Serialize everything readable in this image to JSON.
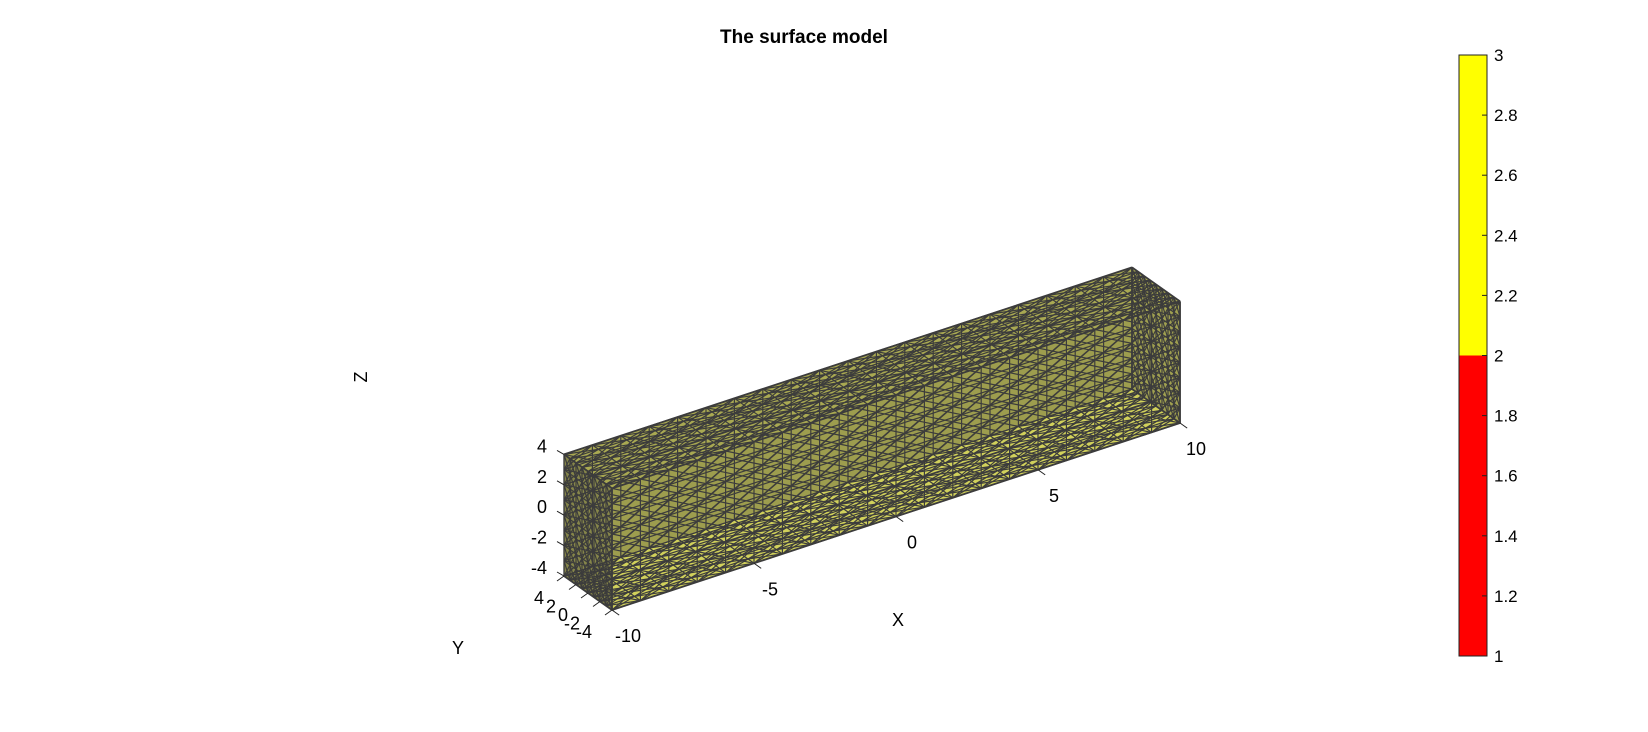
{
  "chart_data": {
    "type": "surface-mesh-3d",
    "title": "The surface model",
    "xlabel": "X",
    "ylabel": "Y",
    "zlabel": "Z",
    "xlim": [
      -10,
      10
    ],
    "ylim": [
      -4,
      4
    ],
    "zlim": [
      -4,
      4
    ],
    "x_ticks": [
      -10,
      -5,
      0,
      5,
      10
    ],
    "y_ticks": [
      -4,
      -2,
      0,
      2,
      4
    ],
    "z_ticks": [
      -4,
      -2,
      0,
      2,
      4
    ],
    "x_tick_labels": [
      "-10",
      "-5",
      "0",
      "5",
      "10"
    ],
    "y_tick_labels": [
      "-4",
      "-2",
      "0",
      "2",
      "4"
    ],
    "z_tick_labels": [
      "-4",
      "-2",
      "0",
      "2",
      "4"
    ],
    "mesh": {
      "shape": "box",
      "x_range": [
        -10,
        10
      ],
      "y_range": [
        -4,
        4
      ],
      "z_range": [
        -4,
        4
      ],
      "grid_spacing": 1,
      "face_color": "#FFFF00",
      "edge_color": "#3c3c3c"
    },
    "colorbar": {
      "range": [
        1,
        3
      ],
      "ticks": [
        1,
        1.2,
        1.4,
        1.6,
        1.8,
        2,
        2.2,
        2.4,
        2.6,
        2.8,
        3
      ],
      "tick_labels": [
        "1",
        "1.2",
        "1.4",
        "1.6",
        "1.8",
        "2",
        "2.2",
        "2.4",
        "2.6",
        "2.8",
        "3"
      ],
      "colormap": [
        {
          "from": 1,
          "to": 2,
          "color": "#FF0000"
        },
        {
          "from": 2,
          "to": 3,
          "color": "#FFFF00"
        }
      ]
    },
    "grid": false,
    "legend": "none"
  }
}
